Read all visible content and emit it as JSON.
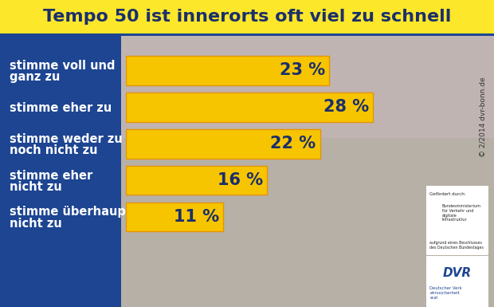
{
  "chart_data": {
    "type": "bar",
    "orientation": "horizontal",
    "title": "Tempo 50 ist innerorts oft viel zu schnell",
    "categories": [
      "stimme voll und ganz zu",
      "stimme eher zu",
      "stimme weder zu noch nicht zu",
      "stimme eher nicht zu",
      "stimme überhaupt nicht zu"
    ],
    "values": [
      23,
      28,
      22,
      16,
      11
    ],
    "value_labels": [
      "23 %",
      "28 %",
      "22 %",
      "16 %",
      "11 %"
    ],
    "data_labels": true,
    "color": "#f7c500",
    "xlim": [
      0,
      40
    ],
    "tick_labels": "y",
    "grid": false,
    "annotations": [
      "© 2/2014 dvr-bonn.de",
      "Gefördert durch:",
      "Bundesministerium für Verkehr und digitale Infrastruktur",
      "aufgrund eines Beschlusses des Deutschen Bundestages",
      "DVR",
      "Deutscher Verkehrssicherheitsrat"
    ]
  }
}
